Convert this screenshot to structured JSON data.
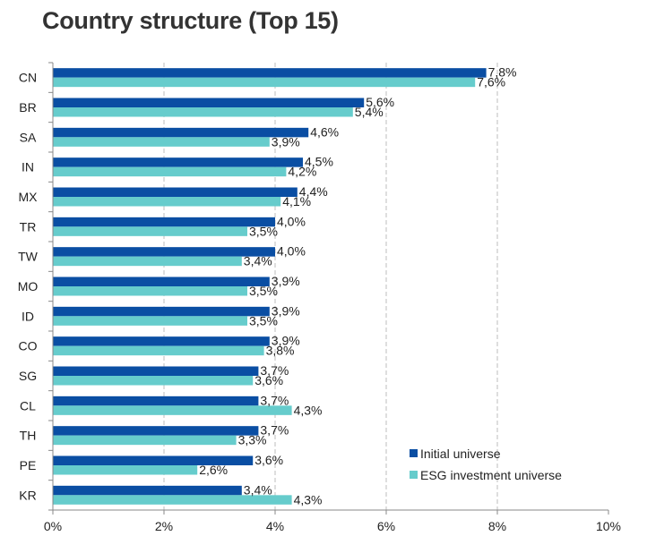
{
  "chart_data": {
    "type": "bar",
    "orientation": "horizontal",
    "title": "Country structure (Top 15)",
    "xlabel": "",
    "ylabel": "",
    "xlim": [
      0,
      10
    ],
    "x_ticks": [
      "0%",
      "2%",
      "4%",
      "6%",
      "8%",
      "10%"
    ],
    "x_tick_values": [
      0,
      2,
      4,
      6,
      8,
      10
    ],
    "grid": "vertical dashed",
    "legend_position": "bottom-right",
    "categories": [
      "CN",
      "BR",
      "SA",
      "IN",
      "MX",
      "TR",
      "TW",
      "MO",
      "ID",
      "CO",
      "SG",
      "CL",
      "TH",
      "PE",
      "KR"
    ],
    "series": [
      {
        "name": "Initial universe",
        "color": "#0a4ea3",
        "values": [
          7.8,
          5.6,
          4.6,
          4.5,
          4.4,
          4.0,
          4.0,
          3.9,
          3.9,
          3.9,
          3.7,
          3.7,
          3.7,
          3.6,
          3.4
        ],
        "labels": [
          "7,8%",
          "5,6%",
          "4,6%",
          "4,5%",
          "4,4%",
          "4,0%",
          "4,0%",
          "3,9%",
          "3,9%",
          "3,9%",
          "3,7%",
          "3,7%",
          "3,7%",
          "3,6%",
          "3,4%"
        ]
      },
      {
        "name": "ESG investment universe",
        "color": "#66cccc",
        "values": [
          7.6,
          5.4,
          3.9,
          4.2,
          4.1,
          3.5,
          3.4,
          3.5,
          3.5,
          3.8,
          3.6,
          4.3,
          3.3,
          2.6,
          4.3
        ],
        "labels": [
          "7,6%",
          "5,4%",
          "3,9%",
          "4,2%",
          "4,1%",
          "3,5%",
          "3,4%",
          "3,5%",
          "3,5%",
          "3,8%",
          "3,6%",
          "4,3%",
          "3,3%",
          "2,6%",
          "4,3%"
        ]
      }
    ]
  }
}
